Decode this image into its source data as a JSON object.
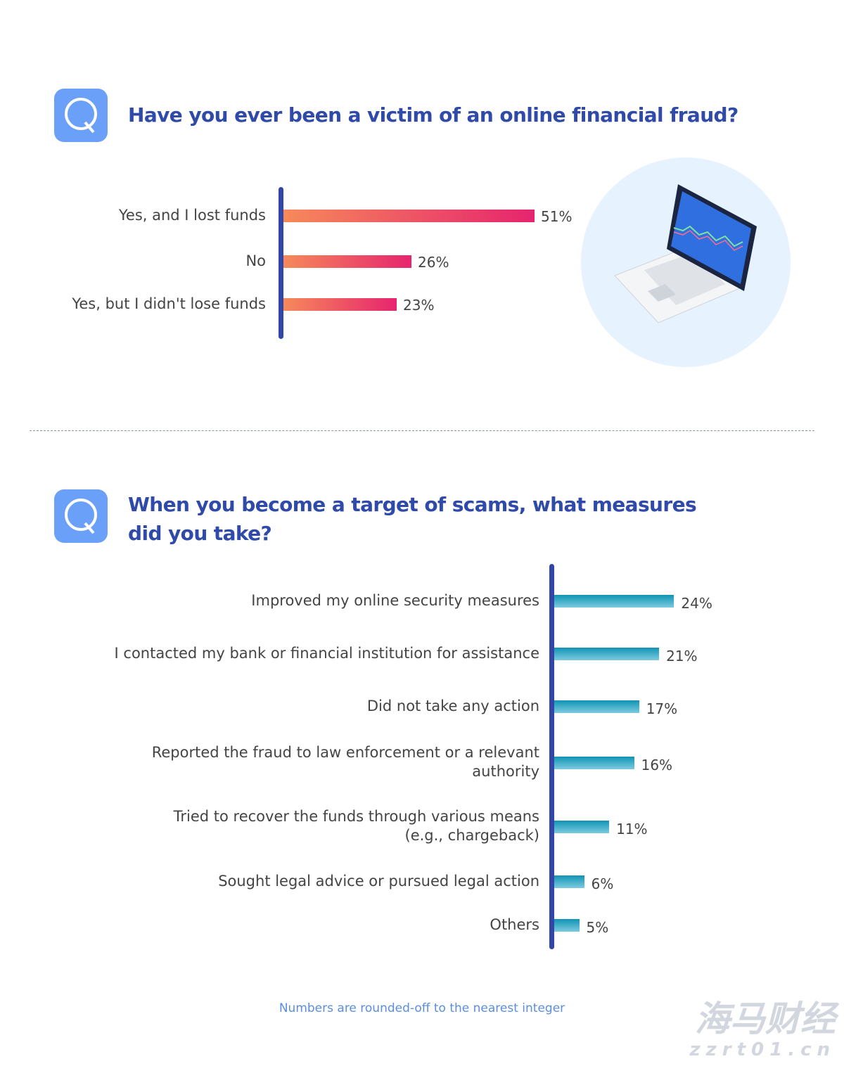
{
  "chart_data": [
    {
      "type": "bar",
      "orientation": "horizontal",
      "title": "Have you ever been a victim of an online financial fraud?",
      "categories": [
        "Yes, and I lost funds",
        "No",
        "Yes, but I didn't lose funds"
      ],
      "values": [
        51,
        26,
        23
      ],
      "value_labels": [
        "51%",
        "26%",
        "23%"
      ],
      "unit": "%",
      "grid": false,
      "colors": {
        "bar_start": "#f6895a",
        "bar_end": "#e6246e",
        "axis": "#3246a8"
      }
    },
    {
      "type": "bar",
      "orientation": "horizontal",
      "title": "When you become a target of scams, what measures did you take?",
      "categories": [
        "Improved my online security measures",
        "I contacted my bank or financial institution for assistance",
        "Did not take any action",
        "Reported the fraud to law enforcement or a relevant authority",
        "Tried to recover the funds through various means (e.g., chargeback)",
        "Sought legal advice or pursued legal action",
        "Others"
      ],
      "values": [
        24,
        21,
        17,
        16,
        11,
        6,
        5
      ],
      "value_labels": [
        "24%",
        "21%",
        "17%",
        "16%",
        "11%",
        "6%",
        "5%"
      ],
      "unit": "%",
      "grid": false,
      "colors": {
        "bar_top": "#1094b4",
        "bar_bottom": "#7ccbe0",
        "axis": "#3246a8"
      }
    }
  ],
  "icons": {
    "question": "q-letter-icon",
    "illustration": "laptop-stock-chart-icon"
  },
  "q_letter": "Q",
  "footnote": "Numbers are rounded-off to the nearest integer",
  "watermark": {
    "line1": "海马财经",
    "line2": "zzrt01.cn"
  },
  "colors": {
    "title": "#2f4aa8",
    "qbox": "#6aa0f8",
    "footnote": "#5a8ee0",
    "illustration_bg": "#e6f2fd"
  }
}
